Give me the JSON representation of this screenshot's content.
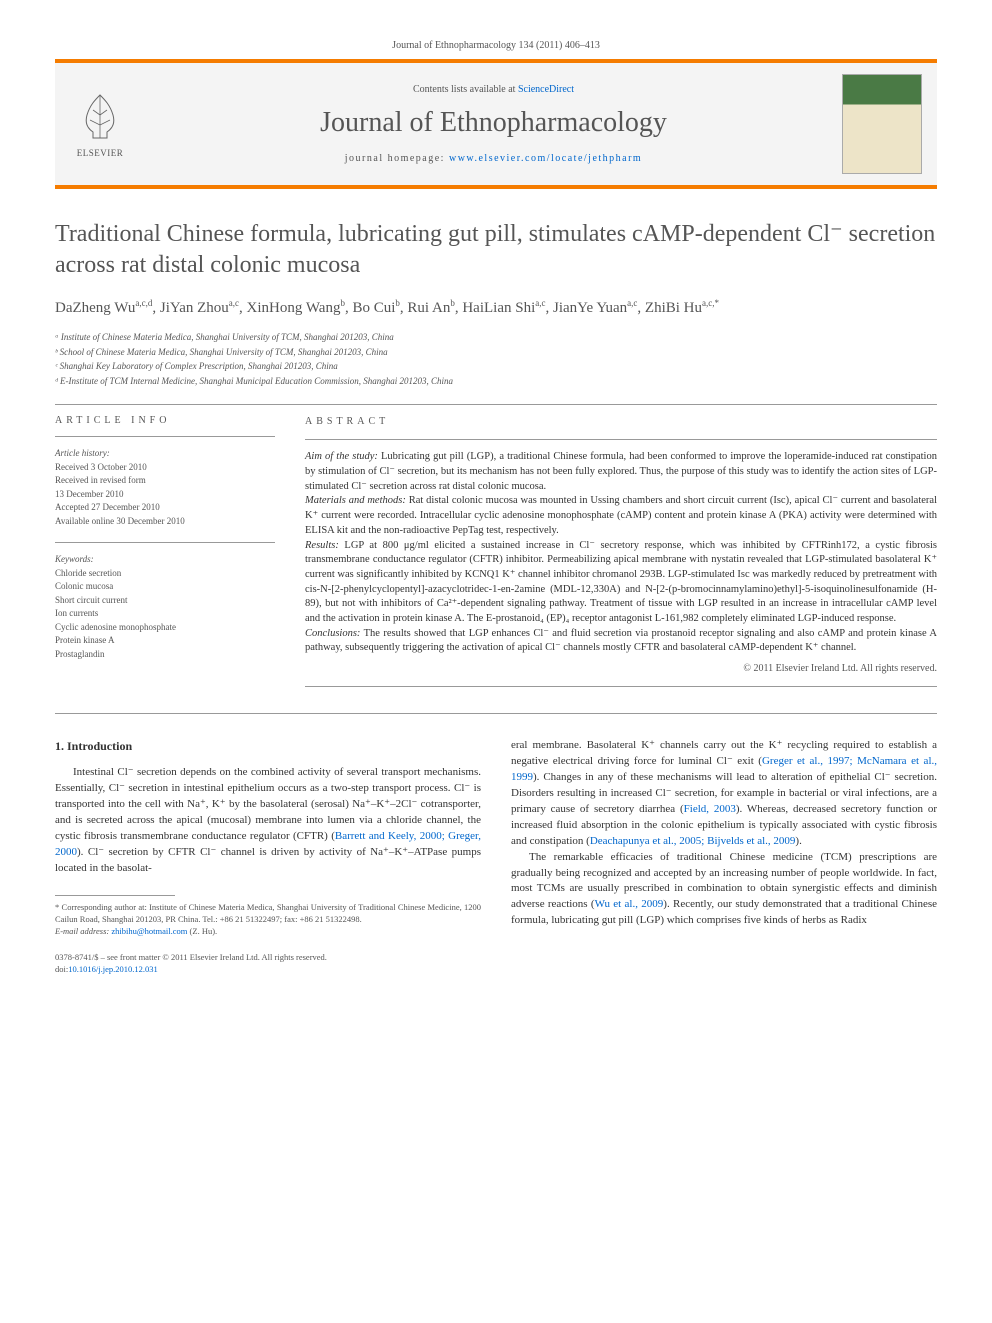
{
  "header": {
    "citation": "Journal of Ethnopharmacology 134 (2011) 406–413",
    "contents_prefix": "Contents lists available at ",
    "contents_link": "ScienceDirect",
    "journal_name": "Journal of Ethnopharmacology",
    "homepage_prefix": "journal homepage: ",
    "homepage_url": "www.elsevier.com/locate/jethpharm",
    "publisher_name": "ELSEVIER"
  },
  "article": {
    "title": "Traditional Chinese formula, lubricating gut pill, stimulates cAMP-dependent Cl⁻ secretion across rat distal colonic mucosa",
    "authors_html": "DaZheng Wu<sup>a,c,d</sup>, JiYan Zhou<sup>a,c</sup>, XinHong Wang<sup>b</sup>, Bo Cui<sup>b</sup>, Rui An<sup>b</sup>, HaiLian Shi<sup>a,c</sup>, JianYe Yuan<sup>a,c</sup>, ZhiBi Hu<sup>a,c,*</sup>",
    "affiliations": [
      "ᵃ Institute of Chinese Materia Medica, Shanghai University of TCM, Shanghai 201203, China",
      "ᵇ School of Chinese Materia Medica, Shanghai University of TCM, Shanghai 201203, China",
      "ᶜ Shanghai Key Laboratory of Complex Prescription, Shanghai 201203, China",
      "ᵈ E-Institute of TCM Internal Medicine, Shanghai Municipal Education Commission, Shanghai 201203, China"
    ]
  },
  "info": {
    "heading": "ARTICLE INFO",
    "history_label": "Article history:",
    "history": [
      "Received 3 October 2010",
      "Received in revised form",
      "13 December 2010",
      "Accepted 27 December 2010",
      "Available online 30 December 2010"
    ],
    "keywords_label": "Keywords:",
    "keywords": [
      "Chloride secretion",
      "Colonic mucosa",
      "Short circuit current",
      "Ion currents",
      "Cyclic adenosine monophosphate",
      "Protein kinase A",
      "Prostaglandin"
    ]
  },
  "abstract": {
    "heading": "ABSTRACT",
    "aim_label": "Aim of the study:",
    "aim_text": " Lubricating gut pill (LGP), a traditional Chinese formula, had been conformed to improve the loperamide-induced rat constipation by stimulation of Cl⁻ secretion, but its mechanism has not been fully explored. Thus, the purpose of this study was to identify the action sites of LGP-stimulated Cl⁻ secretion across rat distal colonic mucosa.",
    "methods_label": "Materials and methods:",
    "methods_text": " Rat distal colonic mucosa was mounted in Ussing chambers and short circuit current (Isc), apical Cl⁻ current and basolateral K⁺ current were recorded. Intracellular cyclic adenosine monophosphate (cAMP) content and protein kinase A (PKA) activity were determined with ELISA kit and the non-radioactive PepTag test, respectively.",
    "results_label": "Results:",
    "results_text": " LGP at 800 μg/ml elicited a sustained increase in Cl⁻ secretory response, which was inhibited by CFTRinh172, a cystic fibrosis transmembrane conductance regulator (CFTR) inhibitor. Permeabilizing apical membrane with nystatin revealed that LGP-stimulated basolateral K⁺ current was significantly inhibited by KCNQ1 K⁺ channel inhibitor chromanol 293B. LGP-stimulated Isc was markedly reduced by pretreatment with cis-N-[2-phenylcyclopentyl]-azacyclotridec-1-en-2amine (MDL-12,330A) and N-[2-(p-bromocinnamylamino)ethyl]-5-isoquinolinesulfonamide (H-89), but not with inhibitors of Ca²⁺-dependent signaling pathway. Treatment of tissue with LGP resulted in an increase in intracellular cAMP level and the activation in protein kinase A. The E-prostanoid₄ (EP)₄ receptor antagonist L-161,982 completely eliminated LGP-induced response.",
    "conclusions_label": "Conclusions:",
    "conclusions_text": " The results showed that LGP enhances Cl⁻ and fluid secretion via prostanoid receptor signaling and also cAMP and protein kinase A pathway, subsequently triggering the activation of apical Cl⁻ channels mostly CFTR and basolateral cAMP-dependent K⁺ channel.",
    "copyright": "© 2011 Elsevier Ireland Ltd. All rights reserved."
  },
  "body": {
    "section_heading": "1.  Introduction",
    "col1_p1": "Intestinal Cl⁻ secretion depends on the combined activity of several transport mechanisms. Essentially, Cl⁻ secretion in intestinal epithelium occurs as a two-step transport process. Cl⁻ is transported into the cell with Na⁺, K⁺ by the basolateral (serosal) Na⁺–K⁺–2Cl⁻ cotransporter, and is secreted across the apical (mucosal) membrane into lumen via a chloride channel, the cystic fibrosis transmembrane conductance regulator (CFTR) (",
    "col1_link1": "Barrett and Keely, 2000; Greger, 2000",
    "col1_p1b": "). Cl⁻ secretion by CFTR Cl⁻ channel is driven by activity of Na⁺–K⁺–ATPase pumps located in the basolat-",
    "col2_p1a": "eral membrane. Basolateral K⁺ channels carry out the K⁺ recycling required to establish a negative electrical driving force for luminal Cl⁻ exit (",
    "col2_link1": "Greger et al., 1997; McNamara et al., 1999",
    "col2_p1b": "). Changes in any of these mechanisms will lead to alteration of epithelial Cl⁻ secretion. Disorders resulting in increased Cl⁻ secretion, for example in bacterial or viral infections, are a primary cause of secretory diarrhea (",
    "col2_link2": "Field, 2003",
    "col2_p1c": "). Whereas, decreased secretory function or increased fluid absorption in the colonic epithelium is typically associated with cystic fibrosis and constipation (",
    "col2_link3": "Deachapunya et al., 2005; Bijvelds et al., 2009",
    "col2_p1d": ").",
    "col2_p2a": "The remarkable efficacies of traditional Chinese medicine (TCM) prescriptions are gradually being recognized and accepted by an increasing number of people worldwide. In fact, most TCMs are usually prescribed in combination to obtain synergistic effects and diminish adverse reactions (",
    "col2_link4": "Wu et al., 2009",
    "col2_p2b": "). Recently, our study demonstrated that a traditional Chinese formula, lubricating gut pill (LGP) which comprises five kinds of herbs as Radix"
  },
  "footnotes": {
    "corr_label": "* Corresponding author at: Institute of Chinese Materia Medica, Shanghai University of Traditional Chinese Medicine, 1200 Cailun Road, Shanghai 201203, PR China. Tel.: +86 21 51322497; fax: +86 21 51322498.",
    "email_label": "E-mail address: ",
    "email": "zhibihu@hotmail.com",
    "email_suffix": " (Z. Hu)."
  },
  "footer": {
    "line1": "0378-8741/$ – see front matter © 2011 Elsevier Ireland Ltd. All rights reserved.",
    "doi_prefix": "doi:",
    "doi": "10.1016/j.jep.2010.12.031"
  },
  "colors": {
    "accent": "#f57c00",
    "link": "#0066cc",
    "text": "#333333",
    "muted": "#555555"
  }
}
